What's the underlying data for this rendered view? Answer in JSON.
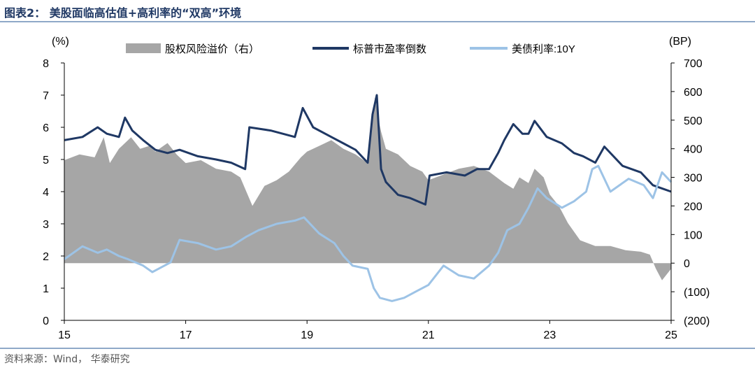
{
  "title": "图表2：  美股面临高估值+高利率的“双高”环境",
  "source": "资料来源：Wind， 华泰研究",
  "chart_data": {
    "type": "line",
    "left_unit": "(%)",
    "right_unit": "(BP)",
    "x_ticks": [
      "15",
      "17",
      "19",
      "21",
      "23",
      "25"
    ],
    "x_range": [
      2015,
      2025
    ],
    "y_left": {
      "min": 0,
      "max": 8,
      "ticks": [
        "0",
        "1",
        "2",
        "3",
        "4",
        "5",
        "6",
        "7",
        "8"
      ]
    },
    "y_right": {
      "min": -200,
      "max": 700,
      "ticks": [
        "(200)",
        "(100)",
        "0",
        "100",
        "200",
        "300",
        "400",
        "500",
        "600",
        "700"
      ]
    },
    "series": [
      {
        "name": "股权风险溢价（右）",
        "type": "area",
        "axis": "right",
        "color": "#a6a6a6",
        "x": [
          2015.0,
          2015.25,
          2015.5,
          2015.65,
          2015.75,
          2015.9,
          2016.0,
          2016.1,
          2016.25,
          2016.4,
          2016.5,
          2016.7,
          2016.85,
          2017.0,
          2017.25,
          2017.5,
          2017.75,
          2017.9,
          2018.0,
          2018.1,
          2018.3,
          2018.5,
          2018.7,
          2018.9,
          2019.0,
          2019.2,
          2019.4,
          2019.6,
          2019.8,
          2020.0,
          2020.05,
          2020.12,
          2020.17,
          2020.22,
          2020.3,
          2020.5,
          2020.7,
          2020.9,
          2021.0,
          2021.25,
          2021.5,
          2021.75,
          2022.0,
          2022.25,
          2022.4,
          2022.5,
          2022.65,
          2022.75,
          2022.9,
          2023.0,
          2023.15,
          2023.3,
          2023.5,
          2023.75,
          2024.0,
          2024.25,
          2024.5,
          2024.65,
          2024.75,
          2024.85,
          2025.0
        ],
        "values": [
          360,
          380,
          370,
          440,
          350,
          400,
          420,
          440,
          400,
          410,
          390,
          420,
          380,
          350,
          360,
          330,
          320,
          300,
          250,
          200,
          270,
          290,
          320,
          370,
          390,
          410,
          430,
          400,
          380,
          350,
          440,
          580,
          510,
          460,
          400,
          380,
          340,
          320,
          290,
          310,
          330,
          340,
          320,
          280,
          260,
          300,
          280,
          330,
          300,
          240,
          200,
          140,
          80,
          60,
          60,
          45,
          40,
          30,
          -20,
          -60,
          -20
        ]
      },
      {
        "name": "标普市盈率倒数",
        "type": "line",
        "axis": "left",
        "color": "#1f3864",
        "x": [
          2015.0,
          2015.3,
          2015.55,
          2015.7,
          2015.9,
          2016.0,
          2016.12,
          2016.3,
          2016.5,
          2016.7,
          2016.9,
          2017.2,
          2017.5,
          2017.75,
          2017.98,
          2018.05,
          2018.4,
          2018.8,
          2018.93,
          2019.1,
          2019.4,
          2019.6,
          2019.8,
          2020.0,
          2020.08,
          2020.15,
          2020.22,
          2020.3,
          2020.5,
          2020.7,
          2020.95,
          2021.02,
          2021.3,
          2021.6,
          2021.8,
          2022.0,
          2022.15,
          2022.25,
          2022.4,
          2022.55,
          2022.65,
          2022.75,
          2022.95,
          2023.2,
          2023.4,
          2023.55,
          2023.75,
          2023.9,
          2024.2,
          2024.5,
          2024.7,
          2024.85,
          2025.0
        ],
        "values": [
          5.6,
          5.7,
          6.0,
          5.8,
          5.7,
          6.3,
          5.9,
          5.6,
          5.3,
          5.2,
          5.3,
          5.1,
          5.0,
          4.9,
          4.7,
          6.0,
          5.9,
          5.7,
          6.6,
          6.0,
          5.7,
          5.5,
          5.3,
          4.9,
          6.4,
          7.0,
          4.7,
          4.3,
          3.9,
          3.8,
          3.6,
          4.5,
          4.6,
          4.5,
          4.7,
          4.7,
          5.2,
          5.6,
          6.1,
          5.8,
          5.8,
          6.2,
          5.7,
          5.5,
          5.2,
          5.1,
          4.9,
          5.4,
          4.8,
          4.6,
          4.2,
          4.1,
          4.0
        ]
      },
      {
        "name": "美债利率:10Y",
        "type": "line",
        "axis": "left",
        "color": "#9dc3e6",
        "x": [
          2015.0,
          2015.3,
          2015.55,
          2015.7,
          2015.9,
          2016.05,
          2016.3,
          2016.45,
          2016.55,
          2016.75,
          2016.9,
          2017.2,
          2017.5,
          2017.75,
          2018.0,
          2018.2,
          2018.5,
          2018.8,
          2018.95,
          2019.2,
          2019.45,
          2019.6,
          2019.75,
          2020.0,
          2020.1,
          2020.2,
          2020.4,
          2020.6,
          2020.8,
          2021.0,
          2021.25,
          2021.5,
          2021.75,
          2022.0,
          2022.15,
          2022.3,
          2022.5,
          2022.65,
          2022.8,
          2022.95,
          2023.2,
          2023.4,
          2023.6,
          2023.7,
          2023.8,
          2024.0,
          2024.3,
          2024.55,
          2024.7,
          2024.85,
          2025.0
        ],
        "values": [
          1.9,
          2.3,
          2.1,
          2.2,
          2.0,
          1.9,
          1.7,
          1.5,
          1.6,
          1.8,
          2.5,
          2.4,
          2.2,
          2.3,
          2.6,
          2.8,
          3.0,
          3.1,
          3.2,
          2.7,
          2.4,
          2.0,
          1.7,
          1.6,
          1.0,
          0.7,
          0.6,
          0.7,
          0.9,
          1.1,
          1.7,
          1.4,
          1.3,
          1.7,
          2.1,
          2.8,
          3.0,
          3.5,
          4.1,
          3.8,
          3.5,
          3.7,
          4.0,
          4.7,
          4.8,
          4.0,
          4.4,
          4.2,
          3.8,
          4.6,
          4.3
        ]
      }
    ],
    "legend_position": "top-center",
    "grid": false
  }
}
